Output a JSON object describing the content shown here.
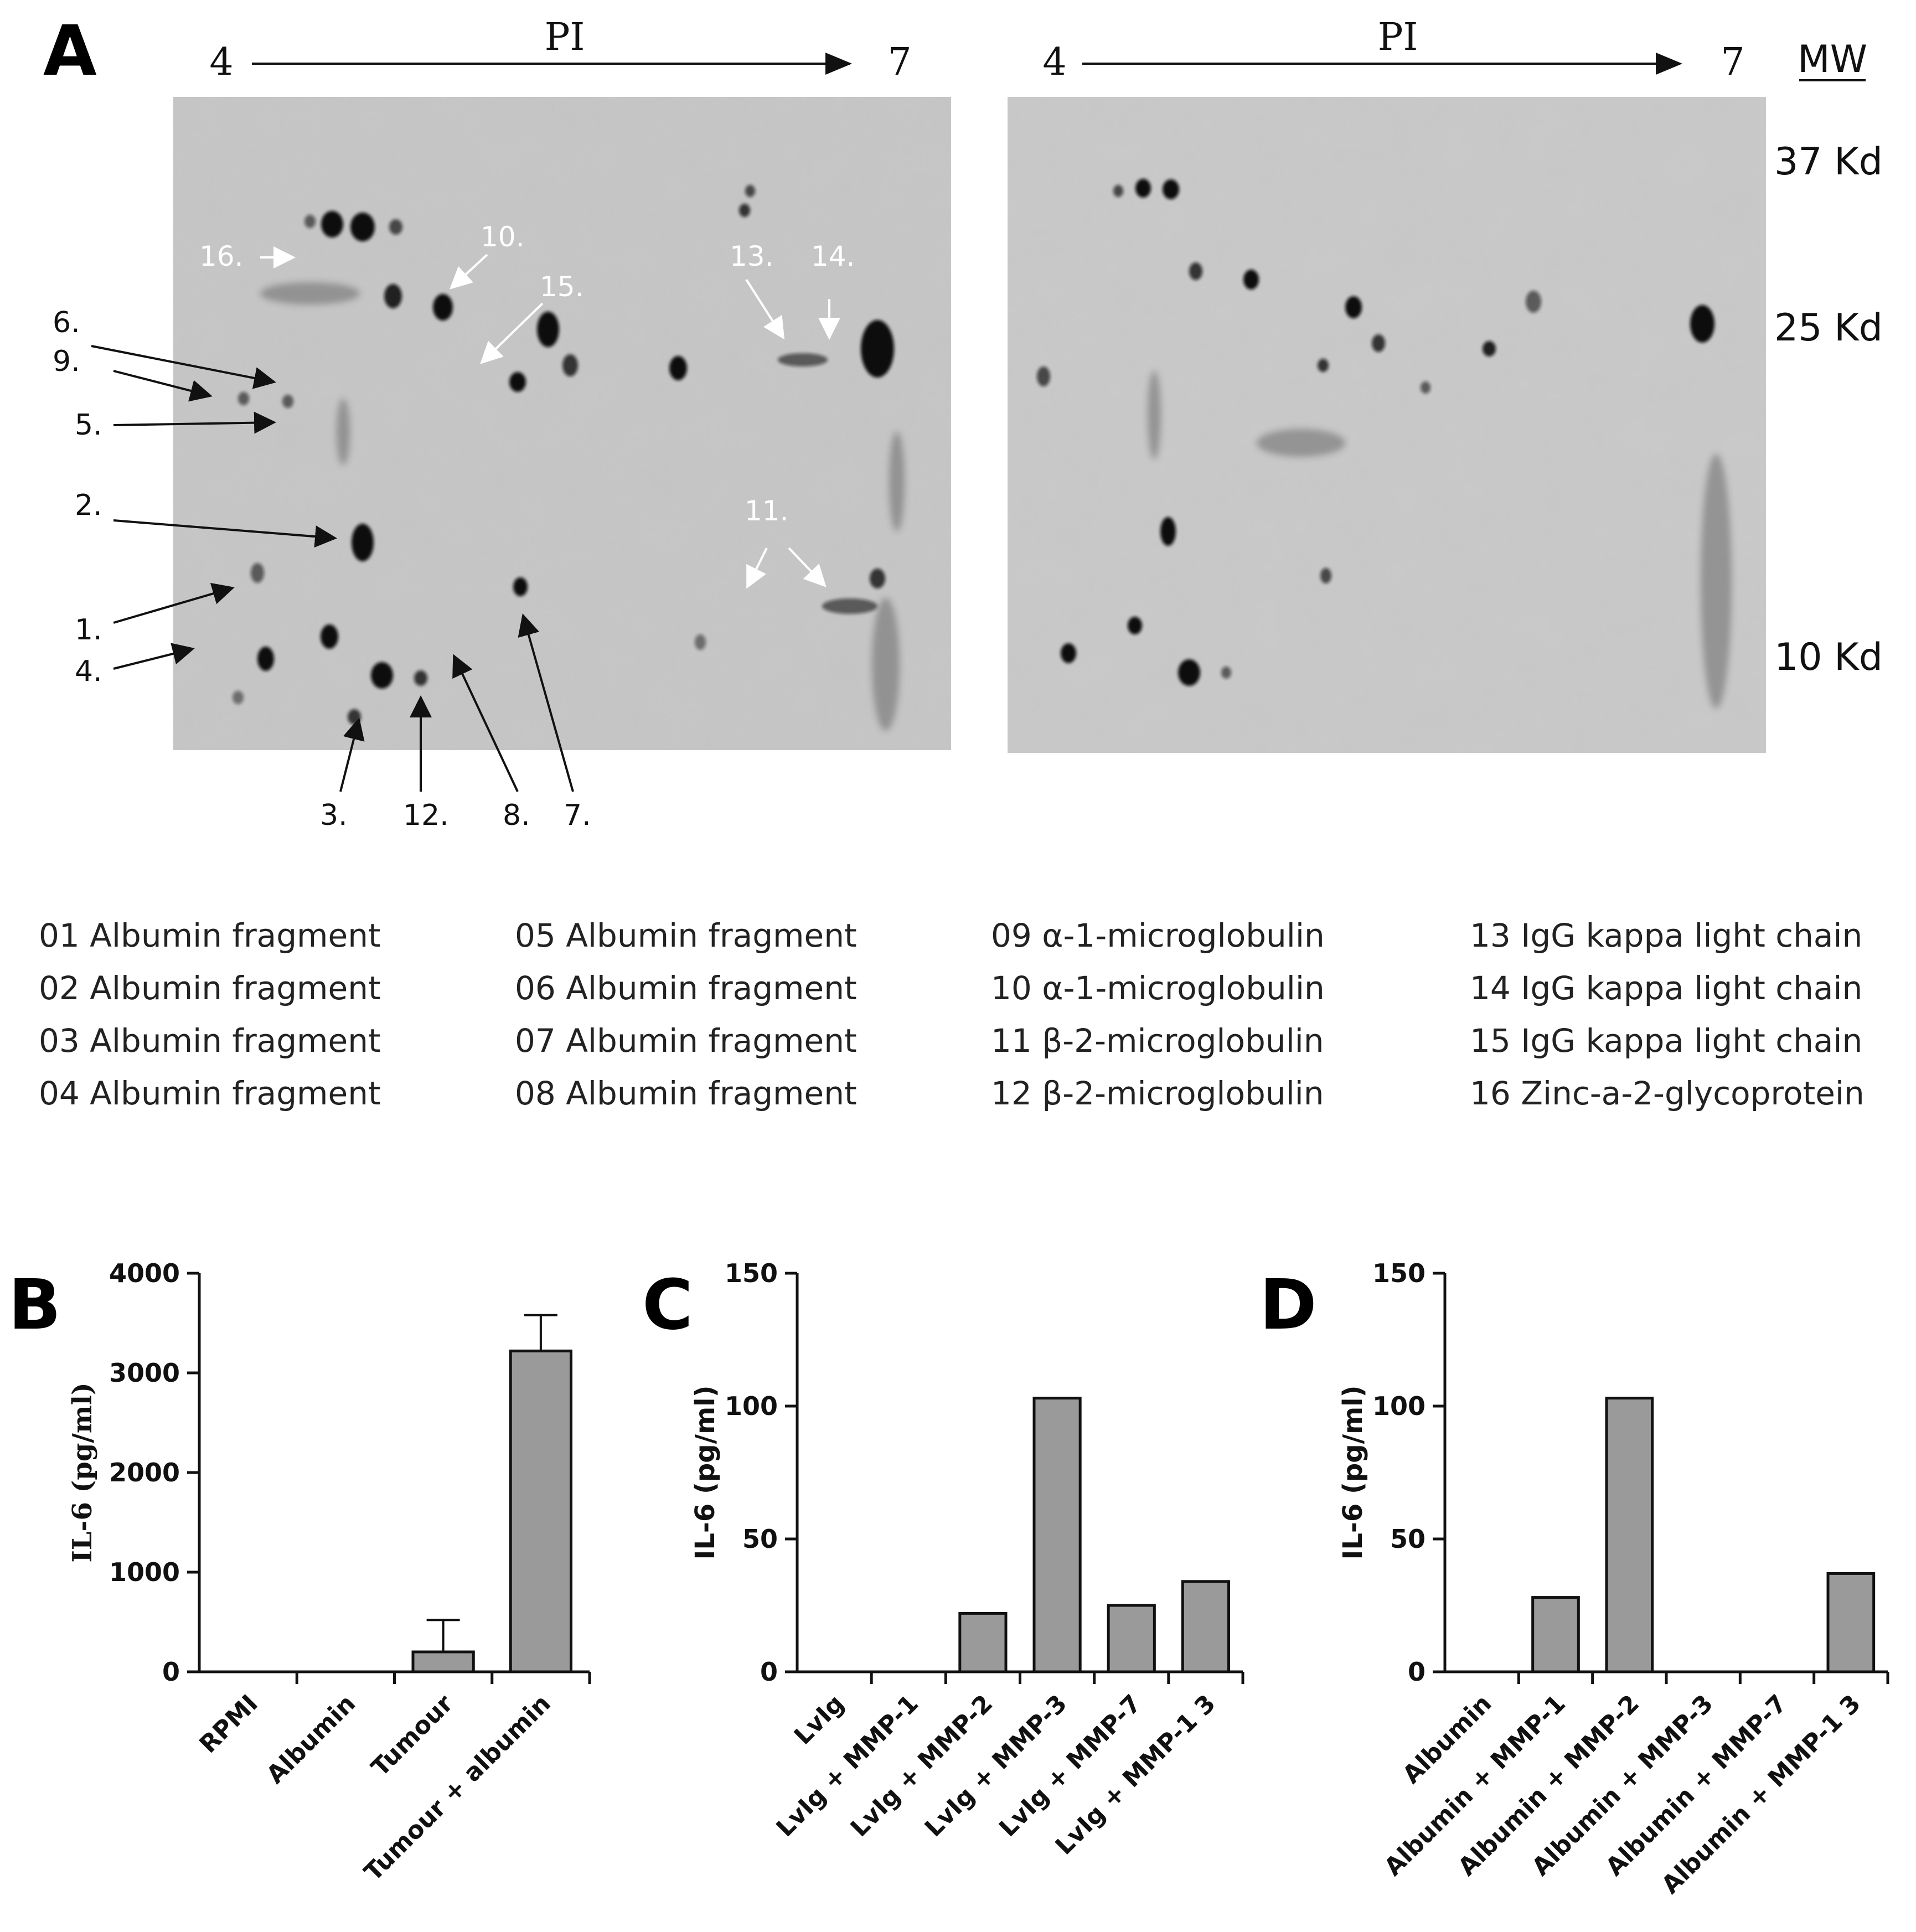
{
  "panel_a": {
    "letter": "A",
    "axis_label": "PI",
    "axis_start": "4",
    "axis_end": "7",
    "mw_label": "MW",
    "mw_markers": [
      {
        "label": "37 Kd"
      },
      {
        "label": "25 Kd"
      },
      {
        "label": "10 Kd"
      }
    ],
    "spot_labels": [
      "1.",
      "2.",
      "3.",
      "4.",
      "5.",
      "6.",
      "7.",
      "8.",
      "9.",
      "10.",
      "11.",
      "12.",
      "13.",
      "14.",
      "15.",
      "16."
    ],
    "legend": [
      [
        "01 Albumin  fragment",
        "02 Albumin  fragment",
        "03 Albumin  fragment",
        "04 Albumin  fragment"
      ],
      [
        "05 Albumin  fragment",
        "06 Albumin  fragment",
        "07 Albumin  fragment",
        "08 Albumin  fragment"
      ],
      [
        "09 α-1-microglobulin",
        "10 α-1-microglobulin",
        "11 β-2-microglobulin",
        "12 β-2-microglobulin"
      ],
      [
        "13 IgG kappa light chain",
        "14 IgG kappa light chain",
        "15 IgG kappa light chain",
        "16 Zinc-a-2-glycoprotein"
      ]
    ]
  },
  "chart_data": [
    {
      "panel": "B",
      "type": "bar",
      "ylabel": "IL-6 (pg/ml)",
      "ylim": [
        0,
        4000
      ],
      "yticks": [
        0,
        1000,
        2000,
        3000,
        4000
      ],
      "categories": [
        "RPMI",
        "Albumin",
        "Tumour",
        "Tumour + albumin"
      ],
      "values": [
        0,
        0,
        200,
        3220
      ],
      "errors": [
        0,
        0,
        320,
        360
      ]
    },
    {
      "panel": "C",
      "type": "bar",
      "ylabel": "IL-6 (pg/ml)",
      "ylim": [
        0,
        150
      ],
      "yticks": [
        0,
        50,
        100,
        150
      ],
      "categories": [
        "LvIg",
        "LvIg + MMP-1",
        "LvIg + MMP-2",
        "LvIg + MMP-3",
        "LvIg + MMP-7",
        "LvIg + MMP-1 3"
      ],
      "values": [
        0,
        0,
        22,
        103,
        25,
        34
      ]
    },
    {
      "panel": "D",
      "type": "bar",
      "ylabel": "IL-6 (pg/ml)",
      "ylim": [
        0,
        150
      ],
      "yticks": [
        0,
        50,
        100,
        150
      ],
      "categories": [
        "Albumin",
        "Albumin + MMP-1",
        "Albumin + MMP-2",
        "Albumin + MMP-3",
        "Albumin + MMP-7",
        "Albumin + MMP-1 3"
      ],
      "values": [
        0,
        28,
        103,
        0,
        0,
        37
      ]
    }
  ],
  "colors": {
    "bar_fill": "#9a9a9a",
    "gel_background": "#c9c9c9",
    "ink": "#111111"
  }
}
